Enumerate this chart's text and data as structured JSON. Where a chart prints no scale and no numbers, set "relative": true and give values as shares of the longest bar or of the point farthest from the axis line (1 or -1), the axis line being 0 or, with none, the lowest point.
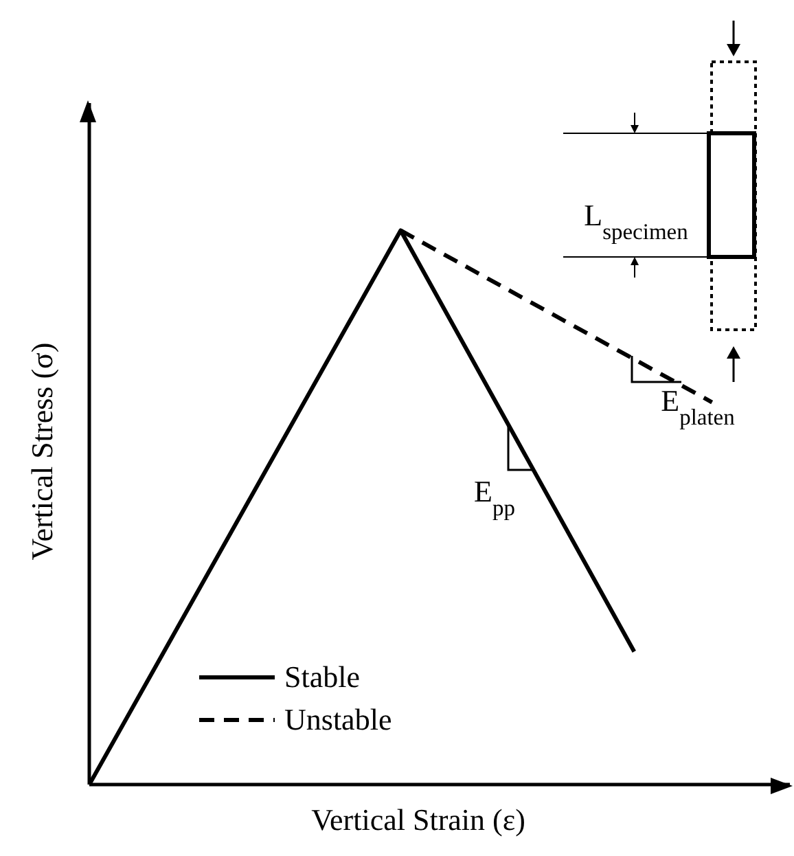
{
  "chart_data": {
    "type": "line",
    "relative": true,
    "xlabel": "Vertical Strain (ε)",
    "ylabel": "Vertical Stress (σ)",
    "tick_labels": false,
    "legend": "bottom left",
    "categories": [
      null,
      null,
      null,
      null,
      null,
      null,
      null,
      null,
      null,
      null
    ],
    "series": [
      {
        "name": "Stable",
        "color": "#000000",
        "line_style": "solid",
        "values": [
          0,
          null,
          null,
          null,
          1,
          null,
          null,
          0.24,
          null,
          null
        ]
      },
      {
        "name": "Unstable",
        "color": "#000000",
        "line_style": "dashed",
        "values": [
          null,
          null,
          null,
          null,
          1,
          null,
          null,
          null,
          0.69,
          null
        ]
      }
    ],
    "annotations": [
      "E$_{pp}$",
      "E$_{platen}$",
      "L$_{specimen}$"
    ]
  }
}
